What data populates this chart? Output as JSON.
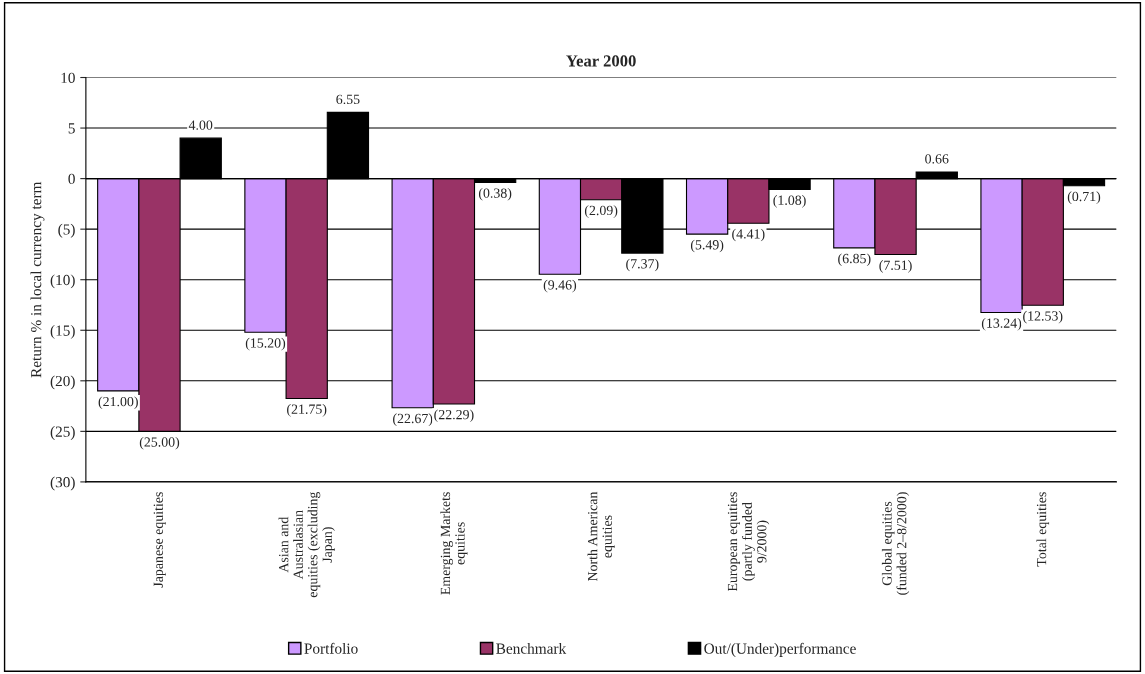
{
  "chart_data": {
    "type": "bar",
    "title": "Year 2000",
    "ylabel": "Return % in local currency term",
    "categories": [
      "Japanese equities",
      "Asian and\nAustralasian\nequities (excluding\nJapan)",
      "Emerging Markets\nequities",
      "North American\nequities",
      "European equities\n(partly funded\n9/2000)",
      "Global equities\n(funded 2–8/2000)",
      "Total equities"
    ],
    "series": [
      {
        "name": "Portfolio",
        "color": "#cc99ff",
        "values": [
          -21.0,
          -15.2,
          -22.67,
          -9.46,
          -5.49,
          -6.85,
          -13.24
        ],
        "value_labels": [
          "(21.00)",
          "(15.20)",
          "(22.67)",
          "(9.46)",
          "(5.49)",
          "(6.85)",
          "(13.24)"
        ]
      },
      {
        "name": "Benchmark",
        "color": "#993366",
        "values": [
          -25.0,
          -21.75,
          -22.29,
          -2.09,
          -4.41,
          -7.51,
          -12.53
        ],
        "value_labels": [
          "(25.00)",
          "(21.75)",
          "(22.29)",
          "(2.09)",
          "(4.41)",
          "(7.51)",
          "(12.53)"
        ]
      },
      {
        "name": "Out/(Under)performance",
        "color": "#000000",
        "values": [
          4.0,
          6.55,
          -0.38,
          -7.37,
          -1.08,
          0.66,
          -0.71
        ],
        "value_labels": [
          "4.00",
          "6.55",
          "(0.38)",
          "(7.37)",
          "(1.08)",
          "0.66",
          "(0.71)"
        ]
      }
    ],
    "ylim": [
      -30,
      10
    ],
    "yticks": [
      10,
      5,
      0,
      {
        "value": -5,
        "label": "(5)"
      },
      {
        "value": -10,
        "label": "(10)"
      },
      {
        "value": -15,
        "label": "(15)"
      },
      {
        "value": -20,
        "label": "(20)"
      },
      {
        "value": -25,
        "label": "(25)"
      },
      {
        "value": -30,
        "label": "(30)"
      }
    ],
    "grid": "y",
    "legend": "bottom"
  }
}
